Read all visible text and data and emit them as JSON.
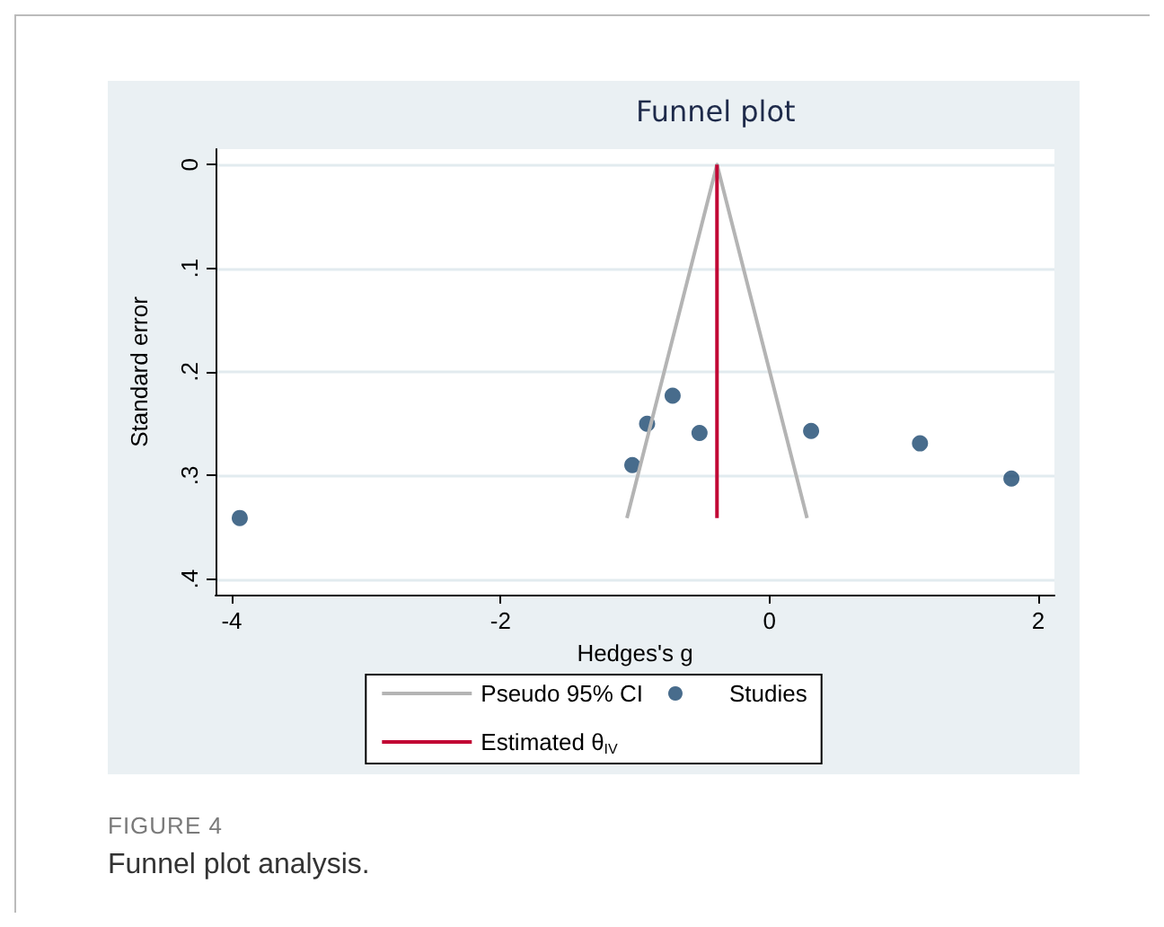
{
  "chart_data": {
    "type": "scatter",
    "title": "Funnel plot",
    "xlabel": "Hedges's g",
    "ylabel": "Standard error",
    "xlim": [
      -4.12,
      2.12
    ],
    "xticks": [
      -4,
      -2,
      0,
      2
    ],
    "ylim": [
      0.415,
      -0.015
    ],
    "yticks": [
      0,
      {
        "value": 0.1,
        "label": ".1"
      },
      {
        "value": 0.2,
        "label": ".2"
      },
      {
        "value": 0.3,
        "label": ".3"
      },
      {
        "value": 0.4,
        "label": ".4"
      }
    ],
    "grid": "y",
    "legend": "bottom",
    "marker": "circle",
    "series": [
      {
        "name": "Pseudo 95% CI",
        "type": "line",
        "color": "#b4b4b4",
        "marker": "none",
        "x": [
          -1.06,
          -0.39,
          0.28
        ],
        "values": [
          0.341,
          0,
          0.341
        ]
      },
      {
        "name": "Studies",
        "type": "scatter",
        "color": "#1a476f",
        "x": [
          -3.94,
          -1.02,
          -0.91,
          -0.72,
          -0.52,
          0.31,
          1.12,
          1.8
        ],
        "values": [
          0.341,
          0.29,
          0.25,
          0.223,
          0.259,
          0.257,
          0.269,
          0.303
        ]
      },
      {
        "name": "Estimated θ$_{IV}$",
        "type": "line",
        "color": "#c10534",
        "marker": "none",
        "x": [
          -0.39,
          -0.39
        ],
        "values": [
          0,
          0.341
        ]
      }
    ],
    "annotations": [
      "FIGURE 4",
      "Funnel plot analysis."
    ]
  }
}
